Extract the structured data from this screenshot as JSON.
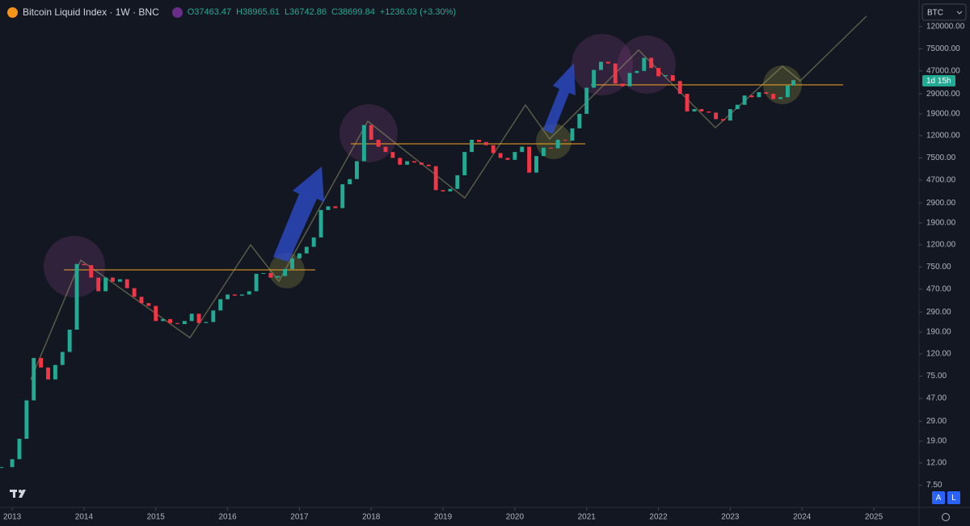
{
  "header": {
    "title": "Bitcoin Liquid Index · 1W · BNC",
    "ohlc": [
      "O37463.47",
      "H38965.61",
      "L36742.86",
      "C38699.84",
      "+1236.03 (+3.30%)"
    ]
  },
  "symbol_button": "BTC",
  "countdown": "1d 15h",
  "buttons": [
    "A",
    "L"
  ],
  "chart_data": {
    "type": "candlestick",
    "log_scale": true,
    "up_color": "#22ab94",
    "down_color": "#f23645",
    "xlim": [
      2012.83,
      2025.63
    ],
    "xticks": [
      2013,
      2014,
      2015,
      2016,
      2017,
      2018,
      2019,
      2020,
      2021,
      2022,
      2023,
      2024,
      2025
    ],
    "ylim": [
      4.7,
      210000
    ],
    "yticks": [
      {
        "value": 120000,
        "label": "120000.00"
      },
      {
        "value": 75000,
        "label": "75000.00"
      },
      {
        "value": 47000,
        "label": "47000.00"
      },
      {
        "value": 29000,
        "label": "29000.00"
      },
      {
        "value": 19000,
        "label": "19000.00"
      },
      {
        "value": 12000,
        "label": "12000.00"
      },
      {
        "value": 7500,
        "label": "7500.00"
      },
      {
        "value": 4700,
        "label": "4700.00"
      },
      {
        "value": 2900,
        "label": "2900.00"
      },
      {
        "value": 1900,
        "label": "1900.00"
      },
      {
        "value": 1200,
        "label": "1200.00"
      },
      {
        "value": 750,
        "label": "750.00"
      },
      {
        "value": 470,
        "label": "470.00"
      },
      {
        "value": 290,
        "label": "290.00"
      },
      {
        "value": 190,
        "label": "190.00"
      },
      {
        "value": 120,
        "label": "120.00"
      },
      {
        "value": 75,
        "label": "75.00"
      },
      {
        "value": 47,
        "label": "47.00"
      },
      {
        "value": 29,
        "label": "29.00"
      },
      {
        "value": 19,
        "label": "19.00"
      },
      {
        "value": 12,
        "label": "12.00"
      },
      {
        "value": 7.5,
        "label": "7.50"
      }
    ],
    "x": [
      2012.85,
      2013.0,
      2013.1,
      2013.2,
      2013.3,
      2013.4,
      2013.5,
      2013.6,
      2013.7,
      2013.8,
      2013.9,
      2014.0,
      2014.1,
      2014.2,
      2014.3,
      2014.4,
      2014.5,
      2014.6,
      2014.7,
      2014.8,
      2014.9,
      2015.0,
      2015.1,
      2015.2,
      2015.3,
      2015.4,
      2015.5,
      2015.6,
      2015.7,
      2015.8,
      2015.9,
      2016.0,
      2016.1,
      2016.2,
      2016.3,
      2016.4,
      2016.5,
      2016.6,
      2016.7,
      2016.8,
      2016.9,
      2017.0,
      2017.1,
      2017.2,
      2017.3,
      2017.4,
      2017.5,
      2017.6,
      2017.7,
      2017.8,
      2017.9,
      2018.0,
      2018.1,
      2018.2,
      2018.3,
      2018.4,
      2018.5,
      2018.6,
      2018.7,
      2018.8,
      2018.9,
      2019.0,
      2019.1,
      2019.2,
      2019.3,
      2019.4,
      2019.5,
      2019.6,
      2019.7,
      2019.8,
      2019.9,
      2020.0,
      2020.1,
      2020.2,
      2020.3,
      2020.4,
      2020.5,
      2020.6,
      2020.7,
      2020.8,
      2020.9,
      2021.0,
      2021.1,
      2021.2,
      2021.3,
      2021.4,
      2021.5,
      2021.6,
      2021.7,
      2021.8,
      2021.9,
      2022.0,
      2022.1,
      2022.2,
      2022.3,
      2022.4,
      2022.5,
      2022.6,
      2022.7,
      2022.8,
      2022.9,
      2023.0,
      2023.1,
      2023.2,
      2023.3,
      2023.4,
      2023.5,
      2023.6,
      2023.7,
      2023.8,
      2023.88
    ],
    "close": [
      11,
      13,
      20,
      45,
      110,
      90,
      70,
      95,
      125,
      200,
      800,
      780,
      600,
      450,
      600,
      550,
      580,
      480,
      400,
      350,
      330,
      240,
      250,
      230,
      225,
      240,
      280,
      230,
      235,
      300,
      380,
      420,
      410,
      420,
      450,
      650,
      660,
      600,
      620,
      720,
      900,
      1000,
      1150,
      1400,
      2500,
      2700,
      2600,
      4300,
      4800,
      7000,
      15000,
      11000,
      9500,
      8500,
      7500,
      6500,
      7000,
      6800,
      6500,
      6300,
      3800,
      3700,
      3900,
      5200,
      8500,
      11000,
      10500,
      9800,
      8300,
      7500,
      7200,
      8500,
      9500,
      5500,
      7800,
      9300,
      9200,
      11000,
      10800,
      14000,
      19000,
      33000,
      48000,
      57000,
      55000,
      36000,
      34000,
      45000,
      47000,
      62000,
      50000,
      42000,
      43000,
      38000,
      29000,
      20000,
      21000,
      20000,
      19500,
      17000,
      16500,
      21000,
      23000,
      28000,
      27000,
      30000,
      29000,
      26000,
      27000,
      34500,
      38699.84
    ]
  }
}
